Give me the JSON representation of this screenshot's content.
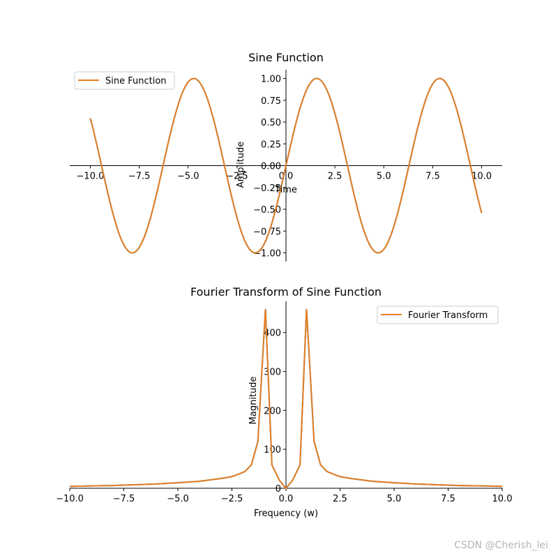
{
  "watermark": "CSDN @Cherish_lei",
  "chart_data": [
    {
      "type": "line",
      "title": "Sine Function",
      "xlabel": "Time",
      "ylabel": "Amplitude",
      "xlim": [
        -11.05,
        11.05
      ],
      "ylim": [
        -1.1,
        1.1
      ],
      "xticks": [
        -10.0,
        -7.5,
        -5.0,
        -2.5,
        0.0,
        2.5,
        5.0,
        7.5,
        10.0
      ],
      "xtick_labels": [
        "−10.0",
        "−7.5",
        "−5.0",
        "−2.5",
        "0.0",
        "2.5",
        "5.0",
        "7.5",
        "10.0"
      ],
      "yticks": [
        -1.0,
        -0.75,
        -0.5,
        -0.25,
        0.0,
        0.25,
        0.5,
        0.75,
        1.0
      ],
      "ytick_labels": [
        "−1.00",
        "−0.75",
        "−0.50",
        "−0.25",
        "0.00",
        "0.25",
        "0.50",
        "0.75",
        "1.00"
      ],
      "spines": "centered",
      "grid": false,
      "legend_position": "upper-left",
      "color": "#e67e22",
      "series": [
        {
          "name": "Sine Function",
          "x": [
            -10.0,
            -9.5,
            -9.0,
            -8.5,
            -8.0,
            -7.5,
            -7.0,
            -6.5,
            -6.0,
            -5.5,
            -5.0,
            -4.5,
            -4.0,
            -3.5,
            -3.0,
            -2.5,
            -2.0,
            -1.5,
            -1.0,
            -0.5,
            0.0,
            0.5,
            1.0,
            1.5,
            2.0,
            2.5,
            3.0,
            3.5,
            4.0,
            4.5,
            5.0,
            5.5,
            6.0,
            6.5,
            7.0,
            7.5,
            8.0,
            8.5,
            9.0,
            9.5,
            10.0
          ],
          "y": [
            0.544,
            0.075,
            -0.412,
            -0.798,
            -0.989,
            -0.938,
            -0.657,
            -0.215,
            0.279,
            0.706,
            0.959,
            0.978,
            0.757,
            0.351,
            -0.141,
            -0.598,
            -0.909,
            -0.997,
            -0.841,
            -0.479,
            0.0,
            0.479,
            0.841,
            0.997,
            0.909,
            0.598,
            0.141,
            -0.351,
            -0.757,
            -0.978,
            -0.959,
            -0.706,
            -0.279,
            0.215,
            0.657,
            0.938,
            0.989,
            0.798,
            0.412,
            -0.075,
            -0.544
          ]
        }
      ]
    },
    {
      "type": "line",
      "title": "Fourier Transform of Sine Function",
      "xlabel": "Frequency (w)",
      "ylabel": "Magnitude",
      "xlim": [
        -10.0,
        10.0
      ],
      "ylim": [
        0,
        480
      ],
      "xticks": [
        -10.0,
        -7.5,
        -5.0,
        -2.5,
        0.0,
        2.5,
        5.0,
        7.5,
        10.0
      ],
      "xtick_labels": [
        "−10.0",
        "−7.5",
        "−5.0",
        "−2.5",
        "0.0",
        "2.5",
        "5.0",
        "7.5",
        "10.0"
      ],
      "yticks": [
        0,
        100,
        200,
        300,
        400
      ],
      "ytick_labels": [
        "0",
        "100",
        "200",
        "300",
        "400"
      ],
      "spines": "centered",
      "grid": false,
      "legend_position": "upper-right",
      "color": "#e67e22",
      "series": [
        {
          "name": "Fourier Transform",
          "x": [
            -10.0,
            -9.0,
            -8.0,
            -7.0,
            -6.0,
            -5.0,
            -4.0,
            -3.0,
            -2.5,
            -2.2,
            -1.9,
            -1.6,
            -1.3,
            -0.95,
            -0.65,
            -0.3,
            0.0,
            0.3,
            0.65,
            0.95,
            1.3,
            1.6,
            1.9,
            2.2,
            2.5,
            3.0,
            4.0,
            5.0,
            6.0,
            7.0,
            8.0,
            9.0,
            10.0
          ],
          "y": [
            5,
            6,
            7,
            9,
            11,
            14,
            18,
            25,
            30,
            36,
            43,
            60,
            120,
            460,
            60,
            20,
            0,
            20,
            60,
            460,
            120,
            60,
            43,
            36,
            30,
            25,
            18,
            14,
            11,
            9,
            7,
            6,
            5
          ]
        }
      ]
    }
  ]
}
